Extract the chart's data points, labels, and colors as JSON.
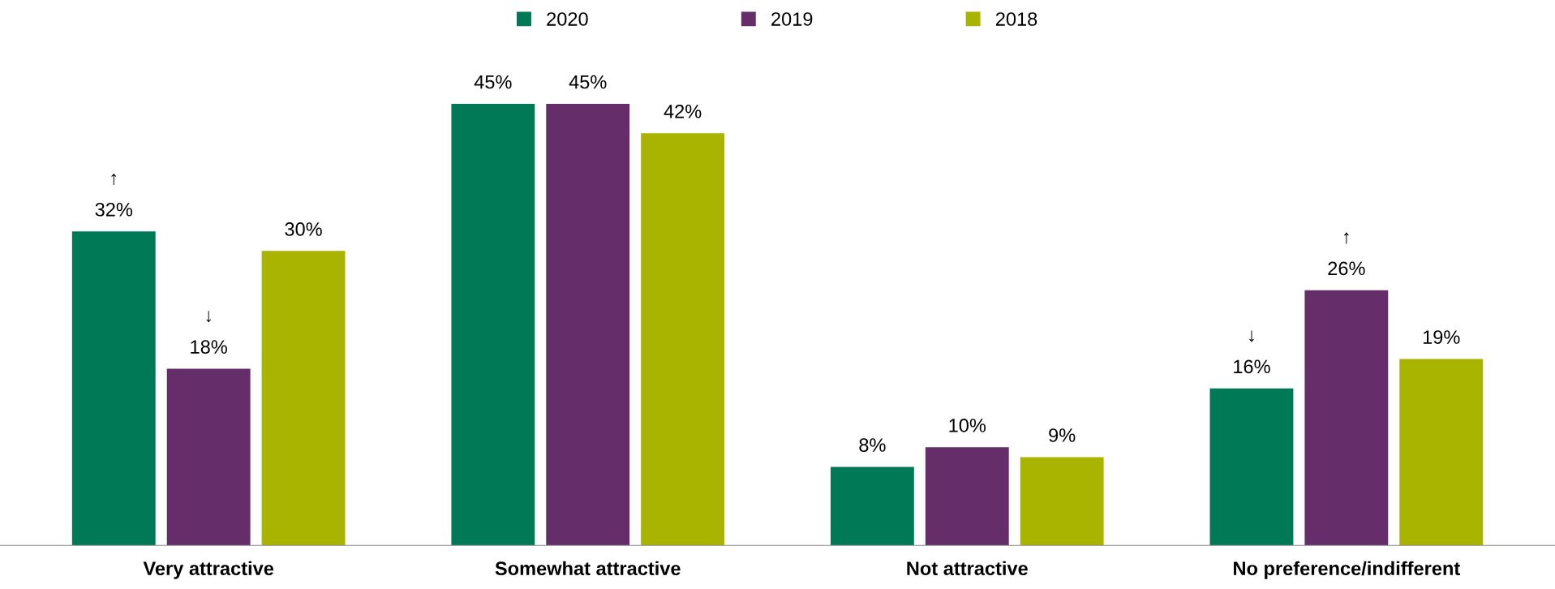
{
  "chart_data": {
    "type": "bar",
    "categories": [
      "Very attractive",
      "Somewhat attractive",
      "Not attractive",
      "No preference/indifferent"
    ],
    "series": [
      {
        "name": "2020",
        "color": "#007a56",
        "values": [
          32,
          45,
          8,
          16
        ],
        "value_labels": [
          "↑\n32%",
          "45%",
          "8%",
          "↓\n16%"
        ]
      },
      {
        "name": "2019",
        "color": "#652d6a",
        "values": [
          18,
          45,
          10,
          26
        ],
        "value_labels": [
          "↓\n18%",
          "45%",
          "10%",
          "↑\n26%"
        ]
      },
      {
        "name": "2018",
        "color": "#a9b400",
        "values": [
          30,
          42,
          9,
          19
        ],
        "value_labels": [
          "30%",
          "42%",
          "9%",
          "19%"
        ]
      }
    ],
    "legend": "top",
    "grid": false
  }
}
